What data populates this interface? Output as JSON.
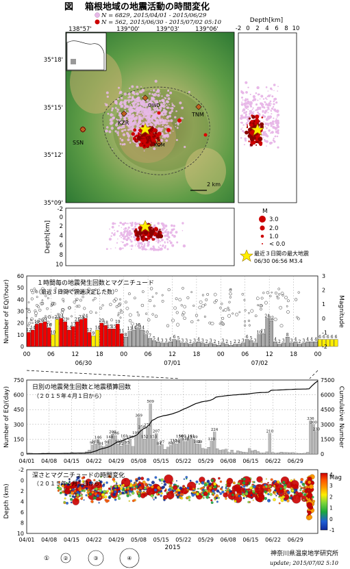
{
  "header": {
    "fig_label": "図",
    "title": "箱根地域の地震活動の時間変化",
    "legend_lines": [
      "N = 6829,  2015/04/01 - 2015/06/29",
      "N = 562,  2015/06/30 - 2015/07/02 05:10"
    ],
    "legend_colors": [
      "#e8b8e8",
      "#cc0000"
    ]
  },
  "map": {
    "lon_ticks": [
      "138°57'",
      "139°00'",
      "139°03'",
      "139°06'"
    ],
    "lat_ticks": [
      "35°18'",
      "35°15'",
      "35°12'",
      "35°09'"
    ],
    "stations": [
      "KZR",
      "SSN",
      "TNM",
      "OWD",
      "KOM"
    ],
    "scale_label": "2 km",
    "colors": {
      "relief_light": "#d9c89a",
      "relief_mid": "#9cbf72",
      "relief_dark": "#4f8f3e",
      "old_eq": "#e8b8e8",
      "new_eq": "#cc0000",
      "star": "#ffee00"
    }
  },
  "depth_side": {
    "title": "Depth[km]",
    "ticks": [
      "-2",
      "0",
      "2",
      "4",
      "6",
      "8",
      "10"
    ]
  },
  "depth_bottom": {
    "ylabel": "Depth[km]",
    "ticks": [
      "-2",
      "0",
      "2",
      "4",
      "6",
      "8",
      "10"
    ]
  },
  "mag_legend": {
    "title": "M",
    "items": [
      "3.0",
      "2.0",
      "1.0",
      "< 0.0"
    ],
    "star_label": "最近３日間の最大地震",
    "star_event": "06/30 06:56 M3.4"
  },
  "chart_data": [
    {
      "type": "bar",
      "title": "１時間毎の地震発生回数とマグニチュード",
      "subtitle": "（最近３日間で震源決定した数）",
      "ylabel": "Number of EQ/(hour)",
      "y2label": "Magnitude",
      "ylim": [
        0,
        60
      ],
      "yticks": [
        "0",
        "10",
        "20",
        "30",
        "40",
        "50",
        "60"
      ],
      "y2ticks": [
        "-2",
        "-1",
        "0",
        "1",
        "2",
        "3"
      ],
      "x_hour_ticks": [
        "00",
        "06",
        "12",
        "18",
        "00",
        "06",
        "12",
        "18",
        "00",
        "06",
        "12",
        "18",
        "00"
      ],
      "x_date_labels": [
        "06/30",
        "07/01",
        "07/02"
      ],
      "bars_hourly": [
        12,
        14,
        19,
        20,
        21,
        16,
        10,
        23,
        24,
        21,
        14,
        17,
        21,
        23,
        24,
        12,
        9,
        14,
        20,
        18,
        15,
        15,
        19,
        11,
        8,
        13,
        14,
        16,
        14,
        10,
        7,
        5,
        4,
        3,
        3,
        4,
        6,
        5,
        3,
        3,
        2,
        3,
        4,
        3,
        2,
        3,
        2,
        1,
        3,
        2,
        1,
        2,
        2,
        3,
        6,
        5,
        3,
        10,
        11,
        24,
        22,
        4,
        2,
        3,
        8,
        3,
        4,
        2,
        3,
        4,
        4,
        4,
        6,
        6,
        6,
        6,
        6
      ],
      "bar_labels": [
        "12",
        "14",
        "19",
        "20",
        "21",
        "16",
        "10",
        "23",
        "24",
        "21",
        "14",
        "17",
        "21",
        "23",
        "24",
        "12",
        "9",
        "14",
        "20",
        "18",
        "15",
        "15",
        "19",
        "11",
        "8",
        "13",
        "14",
        "16",
        "14",
        "10",
        "7",
        "5",
        "4",
        "3",
        "3",
        "4",
        "6",
        "5",
        "3",
        "3",
        "2",
        "3",
        "4",
        "3",
        "2",
        "3",
        "2",
        "1",
        "3",
        "2",
        "1",
        "2",
        "2",
        "3",
        "6",
        "5",
        "3",
        "10",
        "11",
        "24",
        "22",
        "4",
        "2",
        "3",
        "8",
        "3",
        "4",
        "2",
        "3",
        "4",
        "4",
        "4",
        "6",
        "6",
        "6",
        "6",
        "6"
      ],
      "bar_colors_note": "red = day 1, yellow = today, gray = later"
    },
    {
      "type": "bar",
      "title": "日別の地震発生回数と地震積算回数",
      "subtitle": "（２０１５年４月１日から）",
      "ylabel": "Number of EQ/(day)",
      "y2label": "Cumulative Number",
      "ylim": [
        0,
        750
      ],
      "yticks": [
        "0",
        "150",
        "300",
        "450",
        "600",
        "750"
      ],
      "y2ticks": [
        "0",
        "1500",
        "3000",
        "4500",
        "6000",
        "7500"
      ],
      "x_ticks": [
        "04/01",
        "04/08",
        "04/15",
        "04/22",
        "04/29",
        "05/08",
        "05/15",
        "05/22",
        "05/29",
        "06/08",
        "06/15",
        "06/22",
        "06/29"
      ],
      "values": [
        12,
        9,
        3,
        1,
        6,
        10,
        3,
        8,
        1,
        2,
        2,
        3,
        5,
        5,
        6,
        16,
        3,
        4,
        1,
        4,
        23,
        40,
        90,
        103,
        146,
        84,
        76,
        98,
        148,
        200,
        186,
        103,
        82,
        161,
        95,
        150,
        78,
        191,
        369,
        250,
        152,
        271,
        509,
        153,
        207,
        84,
        97,
        48,
        70,
        88,
        115,
        104,
        156,
        160,
        128,
        147,
        161,
        149,
        102,
        99,
        58,
        50,
        69,
        130,
        224,
        55,
        39,
        44,
        49,
        17,
        40,
        12,
        33,
        25,
        19,
        17,
        56,
        33,
        40,
        25,
        12,
        11,
        22,
        210,
        16,
        10,
        13,
        20,
        16,
        15,
        14,
        15,
        9,
        7,
        6,
        8,
        18,
        336,
        300,
        230
      ],
      "cumulative_final": 7400
    },
    {
      "type": "scatter",
      "title": "深さとマグニチュードの時間変化",
      "subtitle": "（２０１５年４月１日から）",
      "ylabel": "Depth (km)",
      "xlabel": "2015",
      "ylim": [
        10,
        -2
      ],
      "yticks": [
        "-2",
        "0",
        "2",
        "4",
        "6",
        "8",
        "10"
      ],
      "x_ticks": [
        "04/01",
        "04/08",
        "04/15",
        "04/22",
        "04/29",
        "05/08",
        "05/15",
        "05/22",
        "05/29",
        "06/08",
        "06/15",
        "06/22",
        "06/29"
      ],
      "colorbar_title": "Mag",
      "colorbar_ticks": [
        "4",
        "3",
        "2",
        "1",
        "0",
        "-1"
      ],
      "colorbar_colors": [
        "#cc0000",
        "#ff5500",
        "#ff9900",
        "#ffee00",
        "#7fd63a",
        "#1aa83c",
        "#1f5fd6",
        "#102a9a"
      ],
      "size_legend": [
        "①",
        "②",
        "③",
        "④"
      ]
    }
  ],
  "footer": {
    "institute": "神奈川県温泉地学研究所",
    "update": "update; 2015/07/02  5:10"
  }
}
